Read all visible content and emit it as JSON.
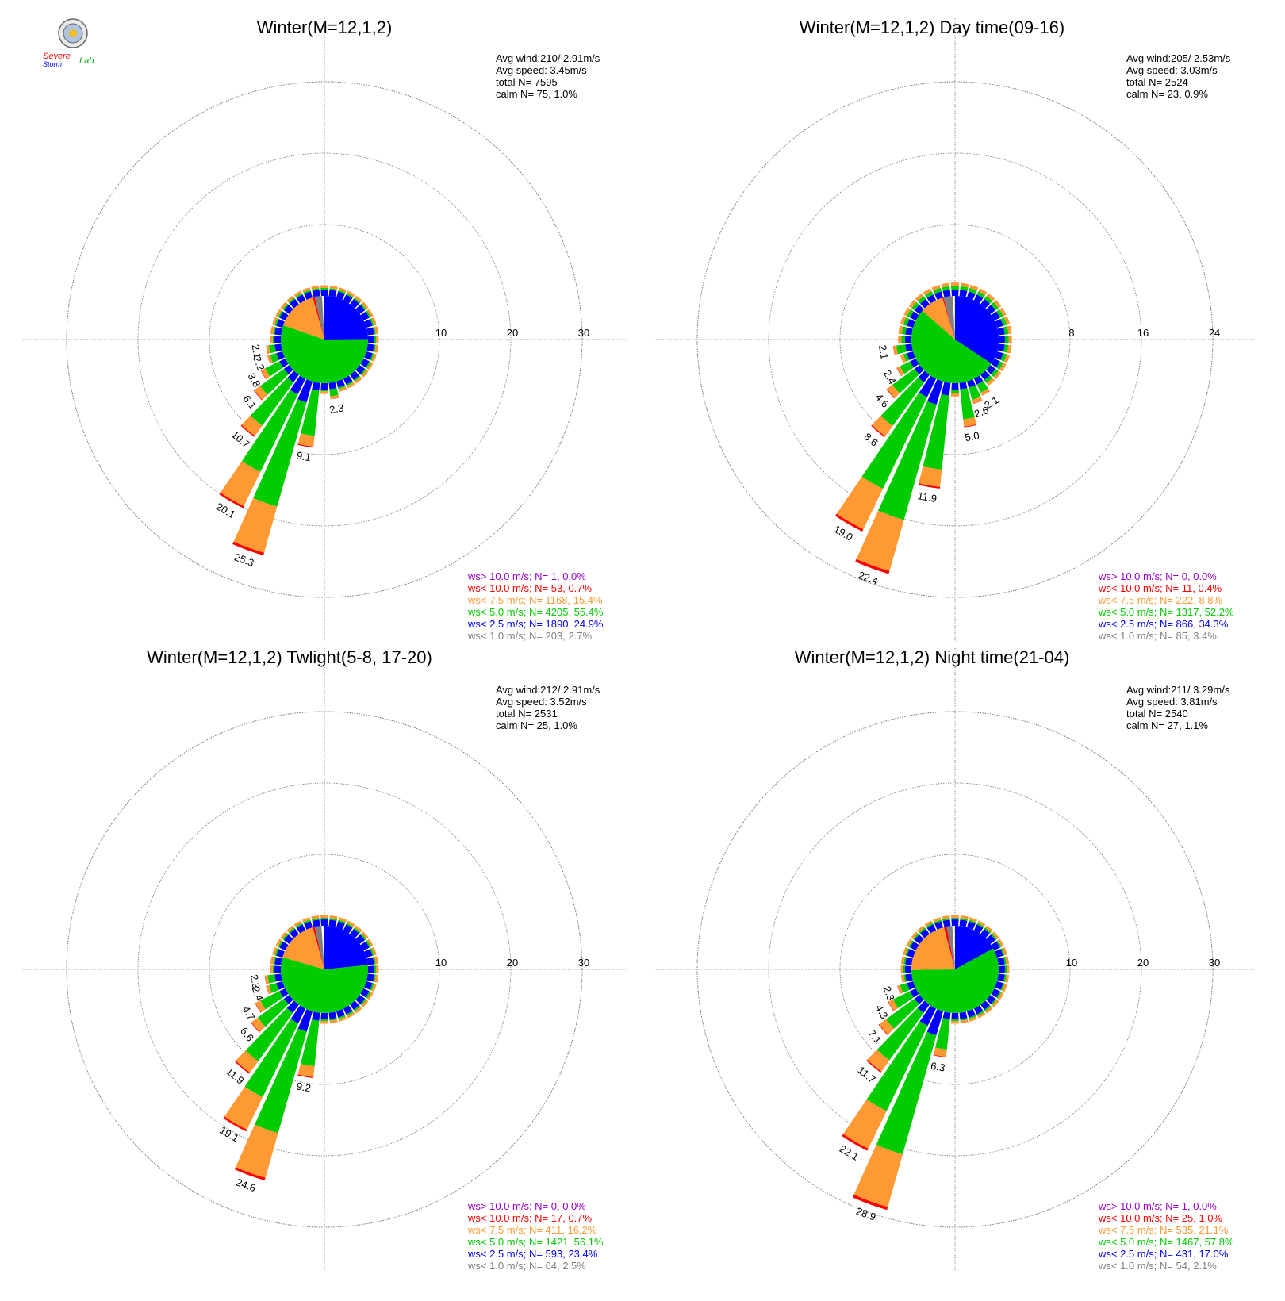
{
  "logo": {
    "text_top": "Severe",
    "text_bottom": "Storm",
    "text_lab": "Lab."
  },
  "colors": {
    "ws_gt10": "#9900cc",
    "ws_lt10": "#ff0000",
    "ws_lt7_5": "#ff9933",
    "ws_lt5": "#00cc00",
    "ws_lt2_5": "#0000ff",
    "ws_lt1": "#808080",
    "grid": "#777777"
  },
  "chart_data": [
    {
      "type": "polar-bar",
      "title": "Winter(M=12,1,2)",
      "ring_labels": [
        "10",
        "20",
        "30"
      ],
      "ring_values": [
        10,
        20,
        30
      ],
      "stats": [
        "Avg wind:210/ 2.91m/s",
        "Avg speed: 3.45m/s",
        "total N=        7595",
        "calm N=     75,   1.0%"
      ],
      "legend": [
        "ws> 10.0 m/s; N=      1,  0.0%",
        "ws< 10.0 m/s; N=     53,  0.7%",
        "ws<  7.5 m/s; N=   1168, 15.4%",
        "ws<  5.0 m/s; N=   4205, 55.4%",
        "ws<  2.5 m/s; N=   1890, 24.9%",
        "ws<  1.0 m/s; N=    203,  2.7%"
      ],
      "bar_labels": [
        {
          "dir": 170,
          "value": 2.3,
          "text": "2.3"
        },
        {
          "dir": 190,
          "value": 9.1,
          "text": "9.1"
        },
        {
          "dir": 200,
          "value": 25.3,
          "text": "25.3"
        },
        {
          "dir": 210,
          "value": 20.1,
          "text": "20.1"
        },
        {
          "dir": 220,
          "value": 10.7,
          "text": "10.7"
        },
        {
          "dir": 230,
          "value": 6.1,
          "text": "6.1"
        },
        {
          "dir": 240,
          "value": 3.8,
          "text": "3.8"
        },
        {
          "dir": 250,
          "value": 2.2,
          "text": "2.2"
        },
        {
          "dir": 260,
          "value": 2.1,
          "text": "2.1"
        }
      ]
    },
    {
      "type": "polar-bar",
      "title": "Winter(M=12,1,2) Day time(09-16)",
      "ring_labels": [
        "8",
        "16",
        "24"
      ],
      "ring_values": [
        8,
        16,
        24
      ],
      "stats": [
        "Avg wind:205/ 2.53m/s",
        "Avg speed: 3.03m/s",
        "total N=        2524",
        "calm N=     23,   0.9%"
      ],
      "legend": [
        "ws> 10.0 m/s; N=      0,  0.0%",
        "ws< 10.0 m/s; N=     11,  0.4%",
        "ws<  7.5 m/s; N=    222,  8.8%",
        "ws<  5.0 m/s; N=   1317, 52.2%",
        "ws<  2.5 m/s; N=    866, 34.3%",
        "ws<  1.0 m/s; N=     85,  3.4%"
      ],
      "bar_labels": [
        {
          "dir": 150,
          "value": 2.1,
          "text": "2.1"
        },
        {
          "dir": 160,
          "value": 2.6,
          "text": "2.6"
        },
        {
          "dir": 170,
          "value": 5.0,
          "text": "5.0"
        },
        {
          "dir": 190,
          "value": 11.9,
          "text": "11.9"
        },
        {
          "dir": 200,
          "value": 22.4,
          "text": "22.4"
        },
        {
          "dir": 210,
          "value": 19.0,
          "text": "19.0"
        },
        {
          "dir": 220,
          "value": 8.6,
          "text": "8.6"
        },
        {
          "dir": 230,
          "value": 4.6,
          "text": "4.6"
        },
        {
          "dir": 240,
          "value": 2.4,
          "text": "2.4"
        },
        {
          "dir": 260,
          "value": 2.1,
          "text": "2.1"
        }
      ]
    },
    {
      "type": "polar-bar",
      "title": "Winter(M=12,1,2) Twlight(5-8, 17-20)",
      "ring_labels": [
        "10",
        "20",
        "30"
      ],
      "ring_values": [
        10,
        20,
        30
      ],
      "stats": [
        "Avg wind:212/ 2.91m/s",
        "Avg speed: 3.52m/s",
        "total N=        2531",
        "calm N=     25,   1.0%"
      ],
      "legend": [
        "ws> 10.0 m/s; N=      0,  0.0%",
        "ws< 10.0 m/s; N=     17,  0.7%",
        "ws<  7.5 m/s; N=    411, 16.2%",
        "ws<  5.0 m/s; N=   1421, 56.1%",
        "ws<  2.5 m/s; N=    593, 23.4%",
        "ws<  1.0 m/s; N=     64,  2.5%"
      ],
      "bar_labels": [
        {
          "dir": 190,
          "value": 9.2,
          "text": "9.2"
        },
        {
          "dir": 200,
          "value": 24.6,
          "text": "24.6"
        },
        {
          "dir": 210,
          "value": 19.1,
          "text": "19.1"
        },
        {
          "dir": 220,
          "value": 11.9,
          "text": "11.9"
        },
        {
          "dir": 230,
          "value": 6.6,
          "text": "6.6"
        },
        {
          "dir": 240,
          "value": 4.7,
          "text": "4.7"
        },
        {
          "dir": 250,
          "value": 2.4,
          "text": "2.4"
        },
        {
          "dir": 260,
          "value": 2.3,
          "text": "2.3"
        }
      ]
    },
    {
      "type": "polar-bar",
      "title": "Winter(M=12,1,2) Night time(21-04)",
      "ring_labels": [
        "10",
        "20",
        "30"
      ],
      "ring_values": [
        10,
        20,
        30
      ],
      "stats": [
        "Avg wind:211/ 3.29m/s",
        "Avg speed: 3.81m/s",
        "total N=        2540",
        "calm N=     27,   1.1%"
      ],
      "legend": [
        "ws> 10.0 m/s; N=      1,  0.0%",
        "ws< 10.0 m/s; N=     25,  1.0%",
        "ws<  7.5 m/s; N=    535, 21.1%",
        "ws<  5.0 m/s; N=   1467, 57.8%",
        "ws<  2.5 m/s; N=    431, 17.0%",
        "ws<  1.0 m/s; N=     54,  2.1%"
      ],
      "bar_labels": [
        {
          "dir": 190,
          "value": 6.3,
          "text": "6.3"
        },
        {
          "dir": 200,
          "value": 28.9,
          "text": "28.9"
        },
        {
          "dir": 210,
          "value": 22.1,
          "text": "22.1"
        },
        {
          "dir": 220,
          "value": 11.7,
          "text": "11.7"
        },
        {
          "dir": 230,
          "value": 7.1,
          "text": "7.1"
        },
        {
          "dir": 240,
          "value": 4.3,
          "text": "4.3"
        },
        {
          "dir": 250,
          "value": 2.3,
          "text": "2.3"
        }
      ]
    }
  ]
}
